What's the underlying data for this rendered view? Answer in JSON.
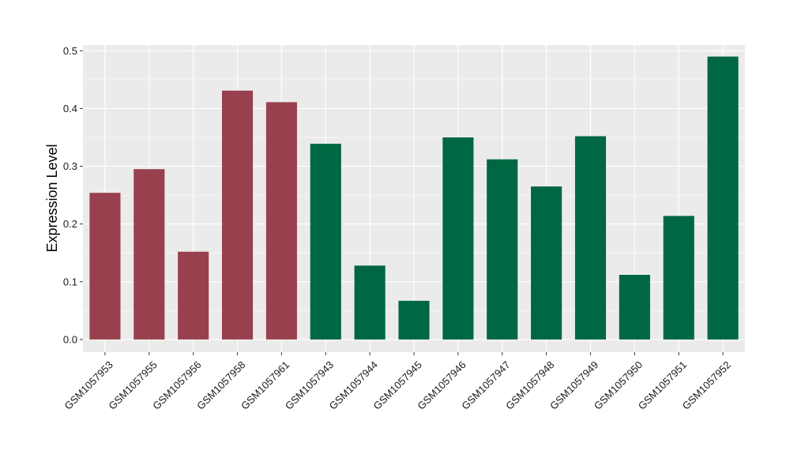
{
  "chart_data": {
    "type": "bar",
    "title": "",
    "xlabel": "",
    "ylabel": "Expression Level",
    "ylim": [
      -0.022,
      0.51
    ],
    "yticks": [
      0.0,
      0.1,
      0.2,
      0.3,
      0.4,
      0.5
    ],
    "ytick_labels": [
      "0.0",
      "0.1",
      "0.2",
      "0.3",
      "0.4",
      "0.5"
    ],
    "grid": true,
    "legend": "none",
    "categories": [
      "GSM1057953",
      "GSM1057955",
      "GSM1057956",
      "GSM1057958",
      "GSM1057961",
      "GSM1057943",
      "GSM1057944",
      "GSM1057945",
      "GSM1057946",
      "GSM1057947",
      "GSM1057948",
      "GSM1057949",
      "GSM1057950",
      "GSM1057951",
      "GSM1057952"
    ],
    "values": [
      0.254,
      0.295,
      0.152,
      0.431,
      0.411,
      0.339,
      0.128,
      0.067,
      0.35,
      0.312,
      0.265,
      0.352,
      0.112,
      0.214,
      0.49
    ],
    "groups": [
      0,
      0,
      0,
      0,
      0,
      1,
      1,
      1,
      1,
      1,
      1,
      1,
      1,
      1,
      1
    ],
    "group_colors": [
      "#99404e",
      "#006743"
    ],
    "panel_background": "#ebebeb",
    "gridline_color": "#ffffff"
  }
}
